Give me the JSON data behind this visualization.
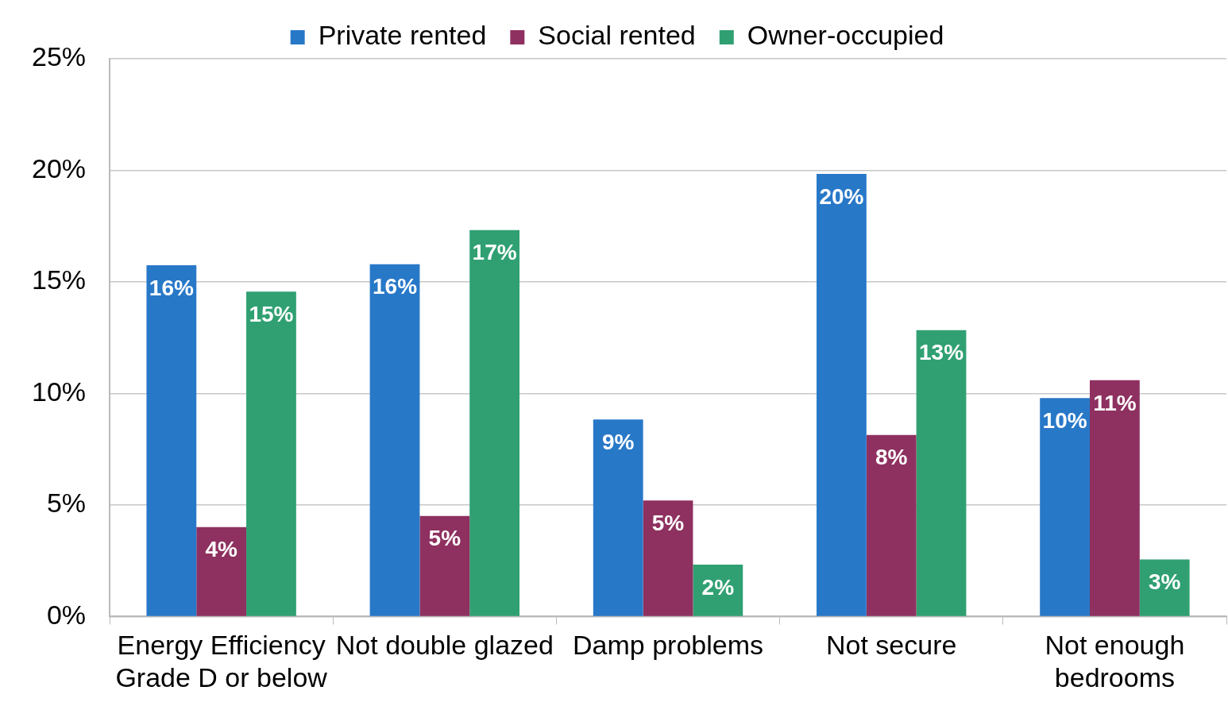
{
  "chart_data": {
    "type": "bar",
    "categories": [
      "Energy Efficiency Grade D or below",
      "Not double glazed",
      "Damp problems",
      "Not secure",
      "Not enough bedrooms"
    ],
    "series": [
      {
        "name": "Private rented",
        "color": "#2878c8",
        "values": [
          15.75,
          15.79,
          8.83,
          19.84,
          9.79
        ],
        "value_labels": [
          "16%",
          "16%",
          "9%",
          "20%",
          "10%"
        ]
      },
      {
        "name": "Social rented",
        "color": "#8e3160",
        "values": [
          4.01,
          4.51,
          5.2,
          8.14,
          10.59
        ],
        "value_labels": [
          "4%",
          "5%",
          "5%",
          "8%",
          "11%"
        ]
      },
      {
        "name": "Owner-occupied",
        "color": "#30a072",
        "values": [
          14.56,
          17.32,
          2.33,
          12.84,
          2.56
        ],
        "value_labels": [
          "15%",
          "17%",
          "2%",
          "13%",
          "3%"
        ]
      }
    ],
    "ylim": [
      0,
      25
    ],
    "yticks": [
      {
        "value": 0,
        "label": "0%"
      },
      {
        "value": 5,
        "label": "5%"
      },
      {
        "value": 10,
        "label": "10%"
      },
      {
        "value": 15,
        "label": "15%"
      },
      {
        "value": 20,
        "label": "20%"
      },
      {
        "value": 25,
        "label": "25%"
      }
    ],
    "grid": "y",
    "legend": "top"
  }
}
